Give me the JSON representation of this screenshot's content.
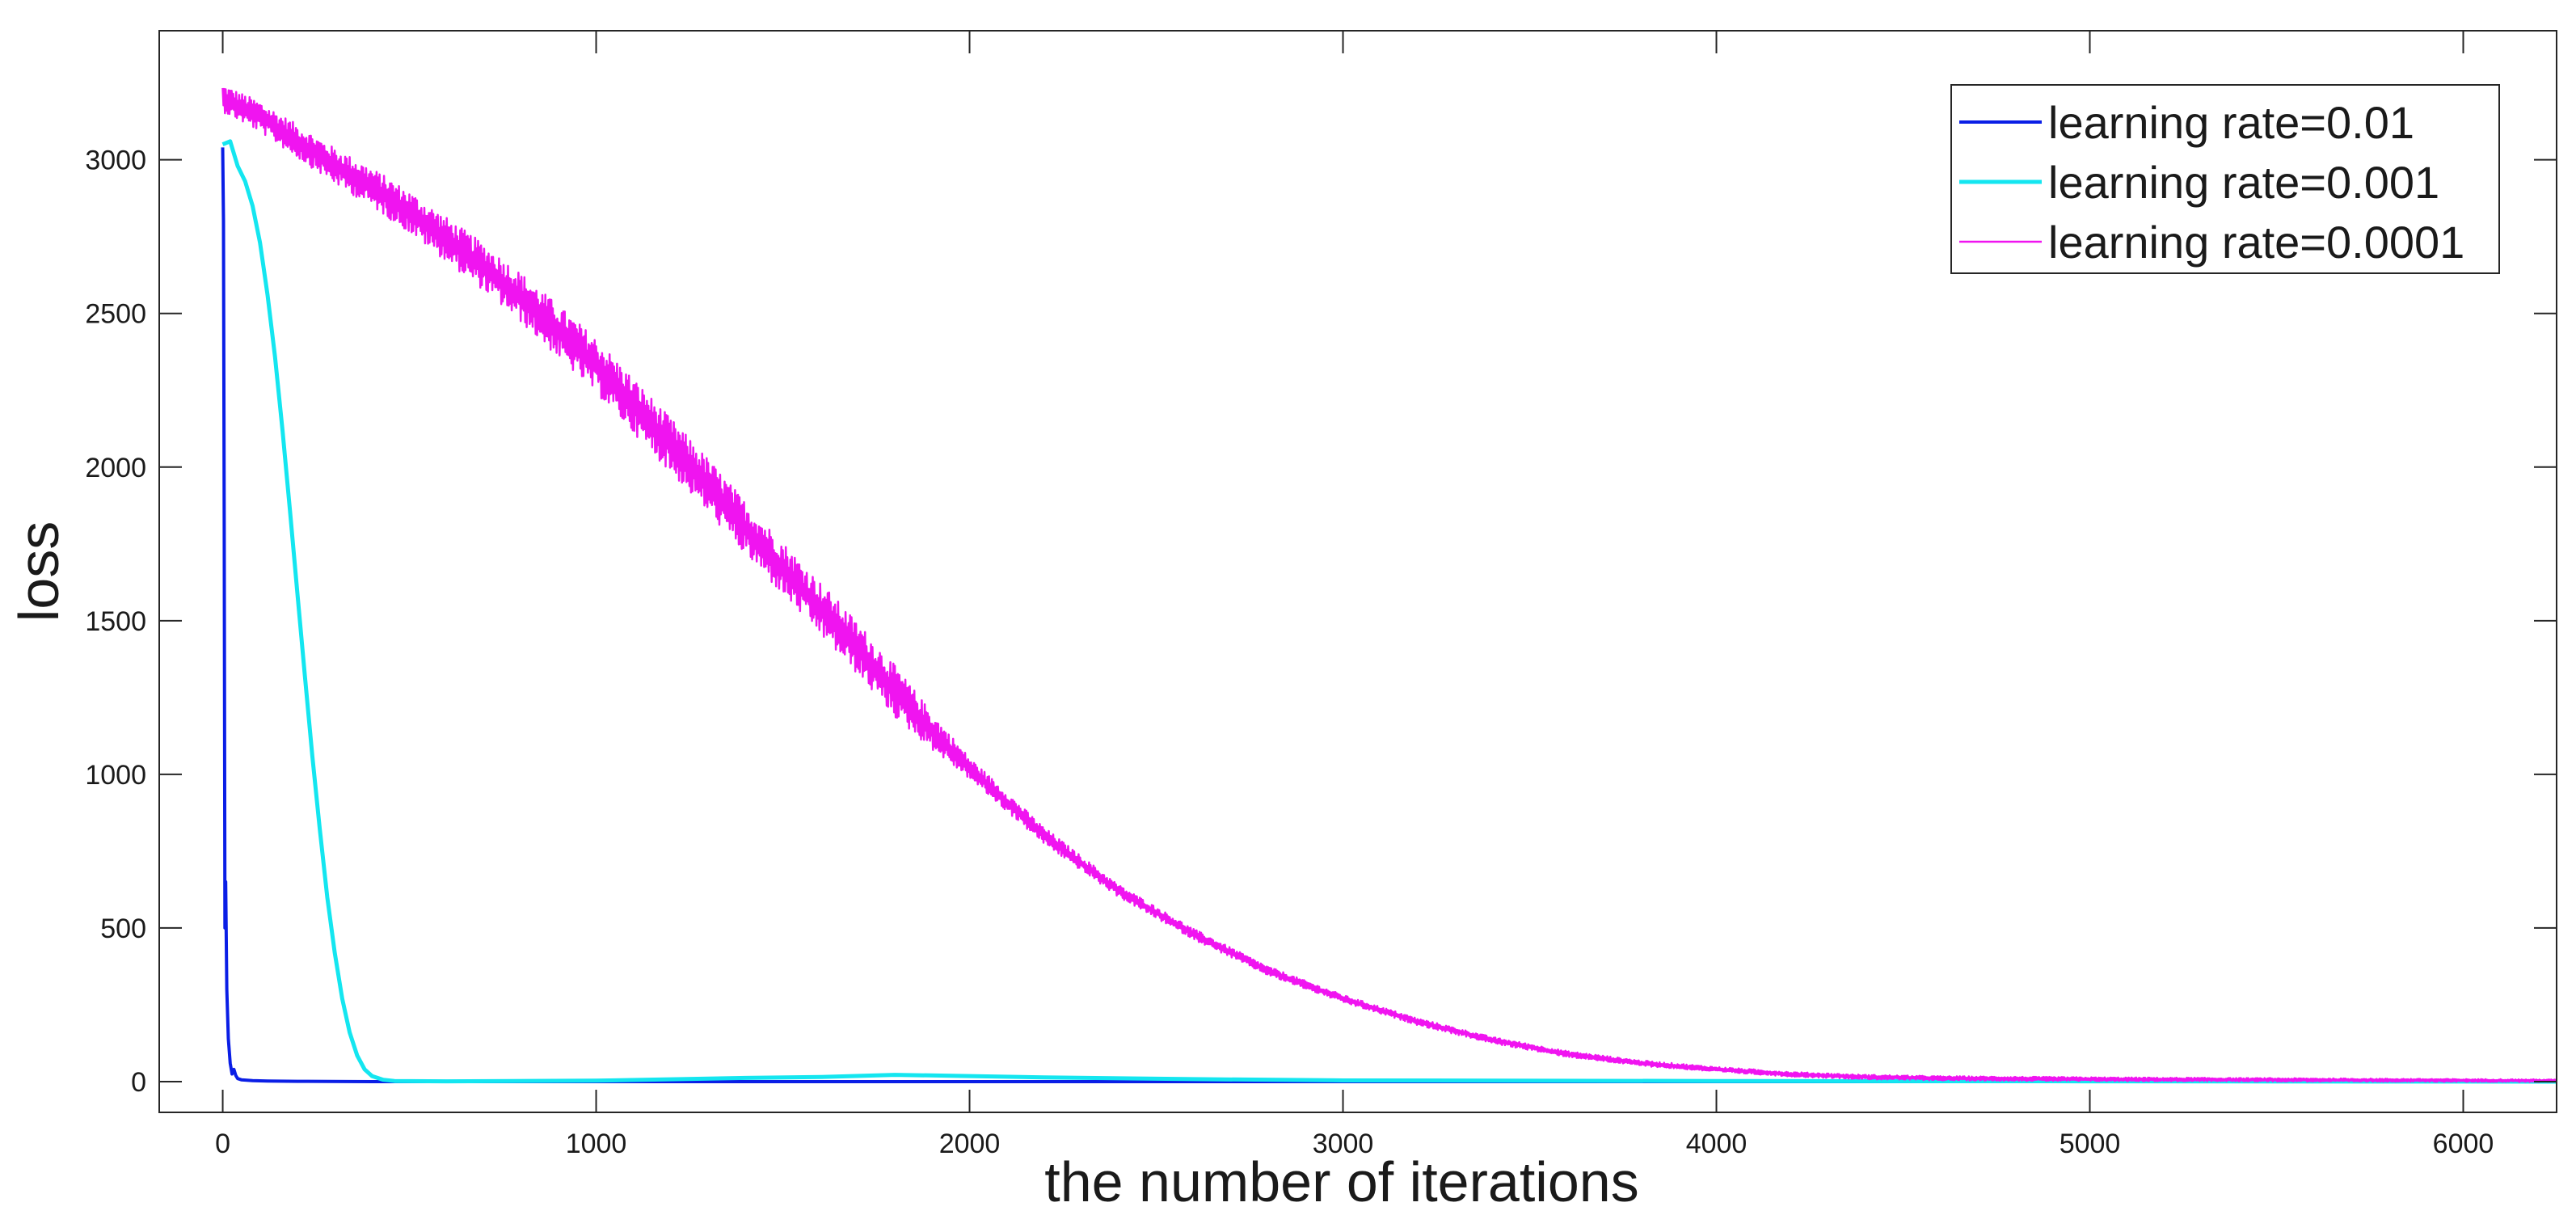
{
  "chart_data": {
    "type": "line",
    "title": "",
    "xlabel": "the number of iterations",
    "ylabel": "loss",
    "xlim": [
      -170,
      6250
    ],
    "ylim": [
      -100,
      3420
    ],
    "xticks": [
      0,
      1000,
      2000,
      3000,
      4000,
      5000,
      6000
    ],
    "yticks": [
      0,
      500,
      1000,
      1500,
      2000,
      2500,
      3000
    ],
    "grid": false,
    "legend_position": "top-right",
    "series": [
      {
        "name": "learning rate=0.01",
        "color": "#0a1ee6",
        "points": [
          [
            0,
            3040
          ],
          [
            2,
            2800
          ],
          [
            4,
            1800
          ],
          [
            6,
            500
          ],
          [
            8,
            650
          ],
          [
            11,
            300
          ],
          [
            15,
            140
          ],
          [
            20,
            60
          ],
          [
            25,
            25
          ],
          [
            30,
            40
          ],
          [
            35,
            20
          ],
          [
            40,
            10
          ],
          [
            50,
            6
          ],
          [
            80,
            3
          ],
          [
            120,
            2
          ],
          [
            200,
            1
          ],
          [
            400,
            0
          ],
          [
            1000,
            0
          ],
          [
            2000,
            0
          ],
          [
            3000,
            0
          ],
          [
            4000,
            0
          ],
          [
            5000,
            0
          ],
          [
            6250,
            0
          ]
        ]
      },
      {
        "name": "learning rate=0.001",
        "color": "#14e6f0",
        "points": [
          [
            0,
            3050
          ],
          [
            20,
            3060
          ],
          [
            40,
            2980
          ],
          [
            60,
            2930
          ],
          [
            80,
            2850
          ],
          [
            100,
            2730
          ],
          [
            120,
            2560
          ],
          [
            140,
            2360
          ],
          [
            160,
            2120
          ],
          [
            180,
            1860
          ],
          [
            200,
            1590
          ],
          [
            220,
            1320
          ],
          [
            240,
            1060
          ],
          [
            260,
            820
          ],
          [
            280,
            600
          ],
          [
            300,
            420
          ],
          [
            320,
            270
          ],
          [
            340,
            160
          ],
          [
            360,
            85
          ],
          [
            380,
            40
          ],
          [
            400,
            18
          ],
          [
            430,
            6
          ],
          [
            460,
            2
          ],
          [
            600,
            1
          ],
          [
            1000,
            3
          ],
          [
            1400,
            12
          ],
          [
            1600,
            15
          ],
          [
            1800,
            22
          ],
          [
            2000,
            18
          ],
          [
            2200,
            14
          ],
          [
            2600,
            8
          ],
          [
            3000,
            4
          ],
          [
            4000,
            2
          ],
          [
            5000,
            1
          ],
          [
            6250,
            0
          ]
        ]
      },
      {
        "name": "learning rate=0.0001",
        "color": "#f014f0",
        "points": [
          [
            0,
            3200
          ],
          [
            100,
            3140
          ],
          [
            200,
            3060
          ],
          [
            300,
            2980
          ],
          [
            400,
            2910
          ],
          [
            500,
            2830
          ],
          [
            600,
            2740
          ],
          [
            700,
            2650
          ],
          [
            800,
            2550
          ],
          [
            900,
            2440
          ],
          [
            1000,
            2330
          ],
          [
            1100,
            2200
          ],
          [
            1200,
            2070
          ],
          [
            1300,
            1940
          ],
          [
            1400,
            1800
          ],
          [
            1500,
            1670
          ],
          [
            1600,
            1540
          ],
          [
            1700,
            1410
          ],
          [
            1800,
            1270
          ],
          [
            1900,
            1140
          ],
          [
            2000,
            1020
          ],
          [
            2200,
            800
          ],
          [
            2400,
            620
          ],
          [
            2600,
            480
          ],
          [
            2800,
            360
          ],
          [
            3000,
            270
          ],
          [
            3200,
            195
          ],
          [
            3400,
            135
          ],
          [
            3600,
            90
          ],
          [
            3800,
            60
          ],
          [
            4000,
            40
          ],
          [
            4200,
            24
          ],
          [
            4400,
            15
          ],
          [
            4600,
            11
          ],
          [
            5000,
            8
          ],
          [
            5500,
            6
          ],
          [
            6000,
            4
          ],
          [
            6250,
            3
          ]
        ],
        "noise": [
          [
            0,
            45
          ],
          [
            1000,
            90
          ],
          [
            1800,
            85
          ],
          [
            2000,
            35
          ],
          [
            2400,
            20
          ],
          [
            3000,
            12
          ],
          [
            4000,
            8
          ],
          [
            6250,
            4
          ]
        ]
      }
    ]
  }
}
